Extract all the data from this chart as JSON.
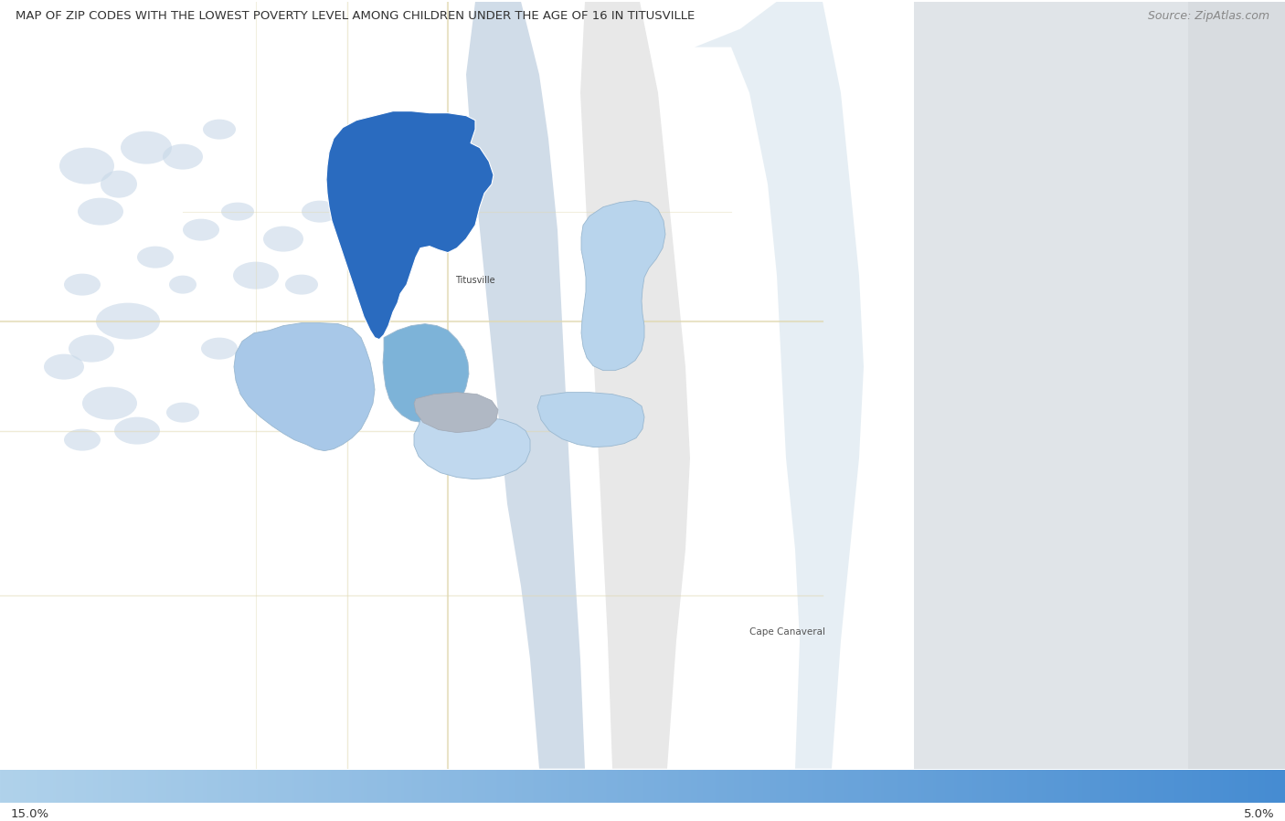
{
  "title": "MAP OF ZIP CODES WITH THE LOWEST POVERTY LEVEL AMONG CHILDREN UNDER THE AGE OF 16 IN TITUSVILLE",
  "source": "Source: ZipAtlas.com",
  "title_fontsize": 9.5,
  "source_fontsize": 9,
  "bg_land": "#f5f5f5",
  "bg_water": "#dce8f0",
  "bg_ocean": "#dce8f0",
  "barrier_island": "#e8e8e8",
  "indian_river_water": "#d0dce8",
  "right_bg": "#e0e4e8",
  "colorbar_left_label": "15.0%",
  "colorbar_right_label": "5.0%",
  "titusville_label": "Titusville",
  "cape_canaveral_label": "Cape Canaveral",
  "label_fontsize": 7,
  "zip_darkblue": "#2a6bbf",
  "zip_medblue1": "#5a9fd4",
  "zip_medblue2": "#7db3d8",
  "zip_lightblue1": "#a8c8e8",
  "zip_lightblue2": "#b8d4ec",
  "zip_lightblue3": "#c0d8ee",
  "zip_gray": "#b0b8c4",
  "zip_verylightblue": "#ccdaec"
}
